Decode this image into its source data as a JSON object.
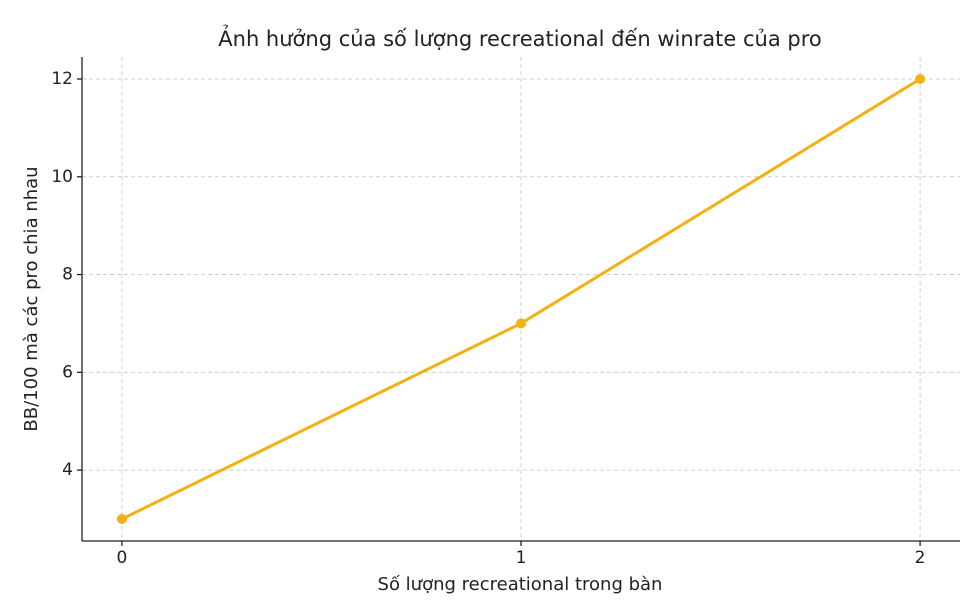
{
  "chart_data": {
    "type": "line",
    "title": "Ảnh hưởng của số lượng recreational đến winrate của pro",
    "x_label": "Số lượng recreational trong bàn",
    "y_label": "BB/100 mà các pro chia nhau",
    "x": [
      0,
      1,
      2
    ],
    "series": [
      {
        "name": "BB/100",
        "color": "#f5b011",
        "values": [
          3,
          7,
          12
        ]
      }
    ],
    "xlim": [
      -0.1,
      2.1
    ],
    "xticks": [
      0,
      1,
      2
    ],
    "ylim": [
      2.55,
      12.45
    ],
    "yticks": [
      4,
      6,
      8,
      10,
      12
    ],
    "grid": true
  }
}
